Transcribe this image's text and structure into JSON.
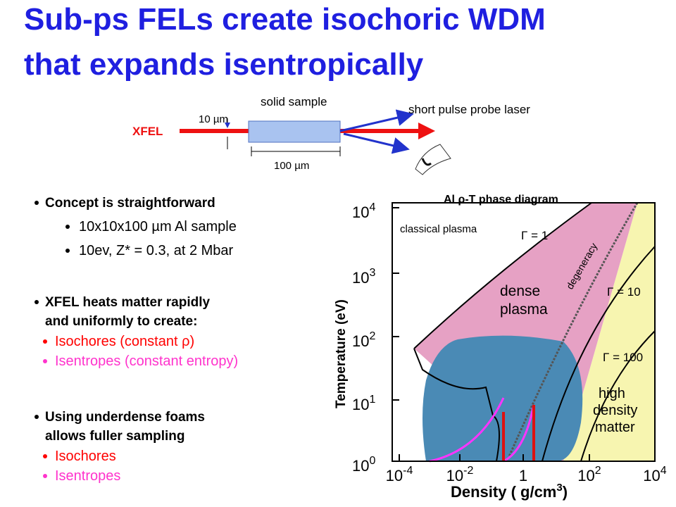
{
  "title": {
    "lines": [
      "Sub-ps FELs create isochoric WDM",
      "that expands isentropically"
    ]
  },
  "setup": {
    "sample_label": "solid sample",
    "probe_label": "short pulse probe laser",
    "thickness": "10 µm",
    "source": "XFEL",
    "length": "100 µm"
  },
  "bullets": [
    {
      "lines": [
        "Concept is straightforward"
      ],
      "subs": [
        {
          "text": "10x10x100 µm Al sample"
        },
        {
          "text": "10ev, Z* = 0.3, at 2 Mbar"
        }
      ]
    },
    {
      "lines": [
        "XFEL heats matter rapidly",
        "and uniformly to create:"
      ],
      "subs": [
        {
          "text": "Isochores  (constant ρ)",
          "color": "#ff0000"
        },
        {
          "text": "Isentropes (constant entropy)",
          "color": "#ff33cc"
        }
      ]
    },
    {
      "lines": [
        "Using underdense foams",
        "allows fuller sampling"
      ],
      "subs": [
        {
          "text": "Isochores",
          "color": "#ff0000"
        },
        {
          "text": "Isentropes",
          "color": "#ff33cc"
        }
      ]
    }
  ],
  "phase_diagram": {
    "title": "Al ρ-T phase diagram",
    "y_label": "Temperature (eV)",
    "x_label": {
      "text": "Density ( g/cm",
      "sup": "3",
      "end": ")"
    },
    "y_ticks": [
      {
        "base": "10",
        "exp": "4"
      },
      {
        "base": "10",
        "exp": "3"
      },
      {
        "base": "10",
        "exp": "2"
      },
      {
        "base": "10",
        "exp": "1"
      },
      {
        "base": "10",
        "exp": "0"
      }
    ],
    "x_ticks": [
      {
        "base": "10",
        "exp": "-4"
      },
      {
        "base": "10",
        "exp": "-2"
      },
      {
        "base": "1"
      },
      {
        "base": "10",
        "exp": "2"
      },
      {
        "base": "10",
        "exp": "4"
      }
    ],
    "regions": {
      "classical": "classical plasma",
      "gamma1": "Γ = 1",
      "degeneracy": "degeneracy",
      "dense": [
        "dense",
        "plasma"
      ],
      "gamma10": "Γ = 10",
      "gamma100": "Γ = 100",
      "high": [
        "high",
        "density",
        "matter"
      ]
    }
  }
}
